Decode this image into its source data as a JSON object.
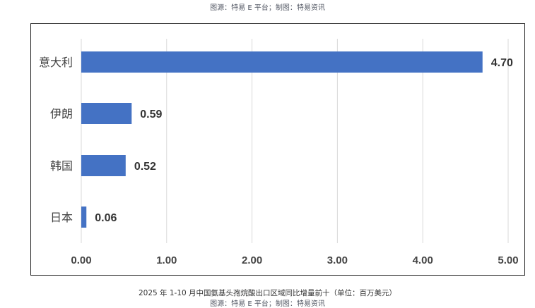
{
  "source_top": "图源：特易  E  平台；制图：特易资讯",
  "caption": "2025  年  1-10  月中国氨基头孢烷酸出口区域同比增量前十（单位：百万美元）",
  "source_bottom": "图源：特易  E  平台；制图：特易资讯",
  "chart_data": {
    "type": "bar",
    "orientation": "horizontal",
    "categories": [
      "意大利",
      "伊朗",
      "韩国",
      "日本"
    ],
    "values": [
      4.7,
      0.59,
      0.52,
      0.06
    ],
    "value_labels": [
      "4.70",
      "0.59",
      "0.52",
      "0.06"
    ],
    "xlim": [
      0,
      5
    ],
    "xticks": [
      "0.00",
      "1.00",
      "2.00",
      "3.00",
      "4.00",
      "5.00"
    ],
    "grid": true,
    "bar_color": "#4472C4"
  }
}
